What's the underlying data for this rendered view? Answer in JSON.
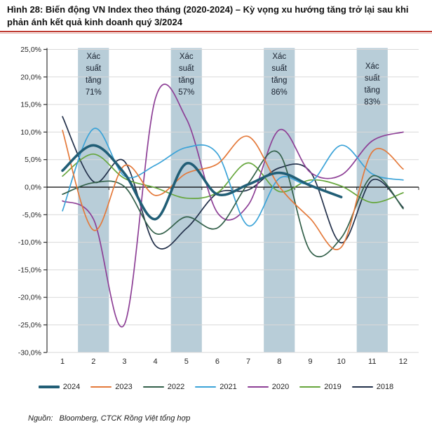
{
  "title": "Hình 28: Biến động VN Index theo tháng (2020-2024) – Kỳ vọng xu hướng tăng trở lại sau khi phản ánh kết quả kinh doanh quý 3/2024",
  "source": {
    "prefix": "Nguồn:",
    "text": "Bloomberg, CTCK Rồng Việt tổng hợp"
  },
  "colors": {
    "title_rule": "#bf3b32",
    "band_fill": "#b8cdd8",
    "gridline": "#d9d9d9",
    "zero_line": "#000000",
    "axis_line": "#333333",
    "tick_label": "#262626",
    "band_text": "#17202e"
  },
  "chart_data": {
    "type": "line",
    "title": "Biến động VN Index theo tháng (2020-2024)",
    "xlabel": "",
    "ylabel": "",
    "x": [
      1,
      2,
      3,
      4,
      5,
      6,
      7,
      8,
      9,
      10,
      11,
      12
    ],
    "x_tick_labels": [
      "1",
      "2",
      "3",
      "4",
      "5",
      "6",
      "7",
      "8",
      "9",
      "10",
      "11",
      "12"
    ],
    "ylim": [
      -30,
      25
    ],
    "ytick_step": 5,
    "y_tick_labels": [
      "25,0%",
      "20,0%",
      "15,0%",
      "10,0%",
      "5,0%",
      "0,0%",
      "-5,0%",
      "-10,0%",
      "-15,0%",
      "-20,0%",
      "-25,0%",
      "-30,0%"
    ],
    "grid": true,
    "legend_position": "bottom",
    "smoothed": true,
    "series": [
      {
        "name": "2024",
        "color": "#215e76",
        "width": 3.6,
        "values": [
          3.0,
          7.6,
          2.5,
          -5.8,
          4.3,
          -1.3,
          0.5,
          2.6,
          0.3,
          -1.8,
          null,
          null
        ]
      },
      {
        "name": "2023",
        "color": "#e4793a",
        "width": 1.7,
        "values": [
          10.3,
          -7.8,
          3.9,
          -1.5,
          2.5,
          4.2,
          9.2,
          0.1,
          -5.7,
          -10.9,
          6.4,
          3.3
        ]
      },
      {
        "name": "2022",
        "color": "#33604a",
        "width": 1.7,
        "values": [
          -1.3,
          0.8,
          0.1,
          -8.4,
          -5.4,
          -7.4,
          0.7,
          6.1,
          -11.6,
          -9.2,
          2.0,
          -3.9
        ]
      },
      {
        "name": "2021",
        "color": "#3ba3d8",
        "width": 1.7,
        "values": [
          -4.3,
          10.6,
          2.0,
          4.0,
          7.2,
          6.1,
          -7.0,
          1.6,
          0.8,
          7.6,
          2.4,
          1.3
        ]
      },
      {
        "name": "2020",
        "color": "#8d3f96",
        "width": 1.7,
        "values": [
          -2.5,
          -5.8,
          -24.9,
          16.1,
          12.4,
          -4.6,
          -3.2,
          10.4,
          2.7,
          2.2,
          8.4,
          10.0
        ]
      },
      {
        "name": "2019",
        "color": "#66a63c",
        "width": 1.7,
        "values": [
          2.0,
          6.0,
          1.6,
          -0.1,
          -2.0,
          -1.0,
          4.4,
          -0.8,
          1.3,
          0.2,
          -2.8,
          -1.0
        ]
      },
      {
        "name": "2018",
        "color": "#22304a",
        "width": 1.7,
        "values": [
          12.8,
          1.0,
          4.7,
          -10.6,
          -7.5,
          -1.1,
          -0.5,
          3.5,
          2.8,
          -10.1,
          1.3,
          -3.7
        ]
      }
    ],
    "highlight_bands": [
      {
        "month": 2,
        "lines": [
          "Xác",
          "suất",
          "tăng",
          "71%"
        ],
        "text_offset": 0
      },
      {
        "month": 5,
        "lines": [
          "Xác",
          "suất",
          "tăng",
          "57%"
        ],
        "text_offset": 0
      },
      {
        "month": 8,
        "lines": [
          "Xác",
          "suất",
          "tăng",
          "86%"
        ],
        "text_offset": 0
      },
      {
        "month": 11,
        "lines": [
          "Xác",
          "suất",
          "tăng",
          "83%"
        ],
        "text_offset": 14
      }
    ]
  }
}
